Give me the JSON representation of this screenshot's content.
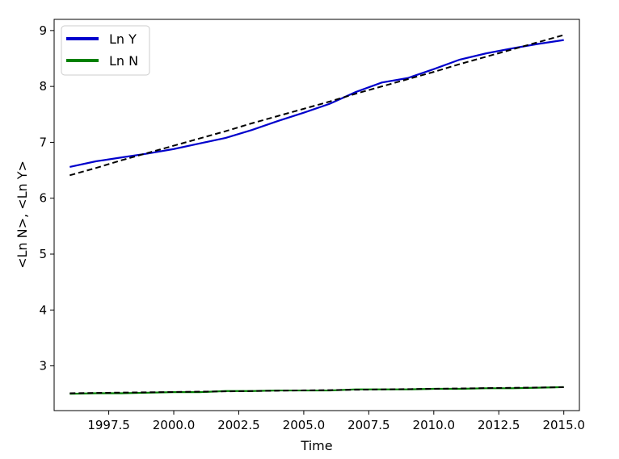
{
  "chart_data": {
    "type": "line",
    "xlabel": "Time",
    "ylabel": "<Ln N>, <Ln Y>",
    "xlim": [
      1995.4,
      2015.6
    ],
    "ylim": [
      2.2,
      9.2
    ],
    "x_ticks": [
      1997.5,
      2000.0,
      2002.5,
      2005.0,
      2007.5,
      2010.0,
      2012.5,
      2015.0
    ],
    "x_tick_labels": [
      "1997.5",
      "2000.0",
      "2002.5",
      "2005.0",
      "2007.5",
      "2010.0",
      "2012.5",
      "2015.0"
    ],
    "y_ticks": [
      3,
      4,
      5,
      6,
      7,
      8,
      9
    ],
    "y_tick_labels": [
      "3",
      "4",
      "5",
      "6",
      "7",
      "8",
      "9"
    ],
    "grid": false,
    "legend_position": "top-left",
    "x": [
      1996,
      1997,
      1998,
      1999,
      2000,
      2001,
      2002,
      2003,
      2004,
      2005,
      2006,
      2007,
      2008,
      2009,
      2010,
      2011,
      2012,
      2013,
      2014,
      2015
    ],
    "series": [
      {
        "name": "Ln Y",
        "color": "#0000cc",
        "style": "solid",
        "values": [
          6.56,
          6.66,
          6.73,
          6.8,
          6.88,
          6.98,
          7.08,
          7.22,
          7.38,
          7.53,
          7.69,
          7.9,
          8.07,
          8.15,
          8.31,
          8.48,
          8.59,
          8.68,
          8.76,
          8.83
        ]
      },
      {
        "name": "Ln N",
        "color": "#008000",
        "style": "solid",
        "values": [
          2.5,
          2.51,
          2.51,
          2.52,
          2.53,
          2.53,
          2.55,
          2.55,
          2.56,
          2.56,
          2.56,
          2.58,
          2.58,
          2.58,
          2.59,
          2.59,
          2.6,
          2.6,
          2.61,
          2.62
        ]
      },
      {
        "color": "#000000",
        "style": "dashed",
        "values": [
          6.41,
          6.54,
          6.68,
          6.81,
          6.94,
          7.07,
          7.2,
          7.34,
          7.47,
          7.6,
          7.73,
          7.87,
          8.0,
          8.13,
          8.26,
          8.4,
          8.53,
          8.66,
          8.79,
          8.92
        ]
      },
      {
        "color": "#000000",
        "style": "dashed",
        "values": [
          2.51,
          2.516,
          2.522,
          2.527,
          2.533,
          2.539,
          2.544,
          2.55,
          2.556,
          2.562,
          2.567,
          2.573,
          2.579,
          2.584,
          2.59,
          2.596,
          2.602,
          2.607,
          2.613,
          2.619
        ]
      }
    ]
  }
}
